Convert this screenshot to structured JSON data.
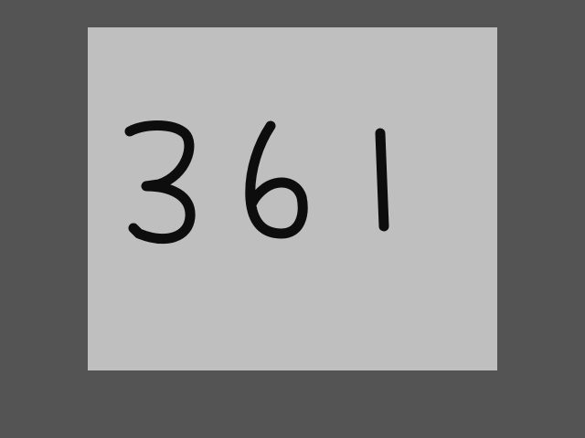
{
  "canvas": {
    "handwritten_text": "361",
    "background_color": "#bfbfbf",
    "ink_color": "#0d0d0d",
    "outer_background_color": "#545454"
  }
}
